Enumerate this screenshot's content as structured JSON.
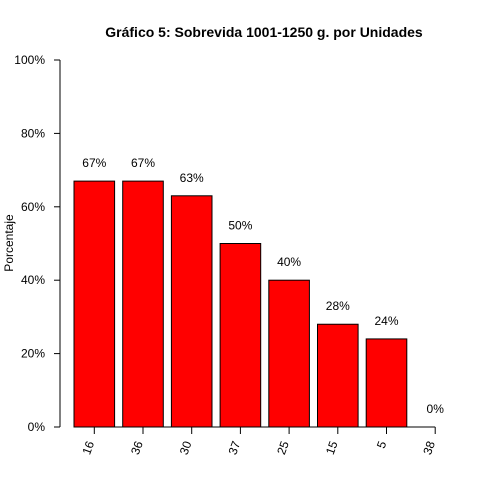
{
  "chart_data": {
    "type": "bar",
    "title": "Gráfico 5: Sobrevida 1001-1250 g. por Unidades",
    "xlabel": "",
    "ylabel": "Porcentaje",
    "categories": [
      "16",
      "36",
      "30",
      "37",
      "25",
      "15",
      "5",
      "38"
    ],
    "values": [
      67,
      67,
      63,
      50,
      40,
      28,
      24,
      0
    ],
    "data_labels": [
      "67%",
      "67%",
      "63%",
      "50%",
      "40%",
      "28%",
      "24%",
      "0%"
    ],
    "ylim": [
      0,
      100
    ],
    "yticks": [
      0,
      20,
      40,
      60,
      80,
      100
    ],
    "ytick_labels": [
      "0%",
      "20%",
      "40%",
      "60%",
      "80%",
      "100%"
    ],
    "grid": false,
    "legend": "none",
    "colors": {
      "bar": "#ff0000",
      "bar_border": "#000000"
    }
  }
}
